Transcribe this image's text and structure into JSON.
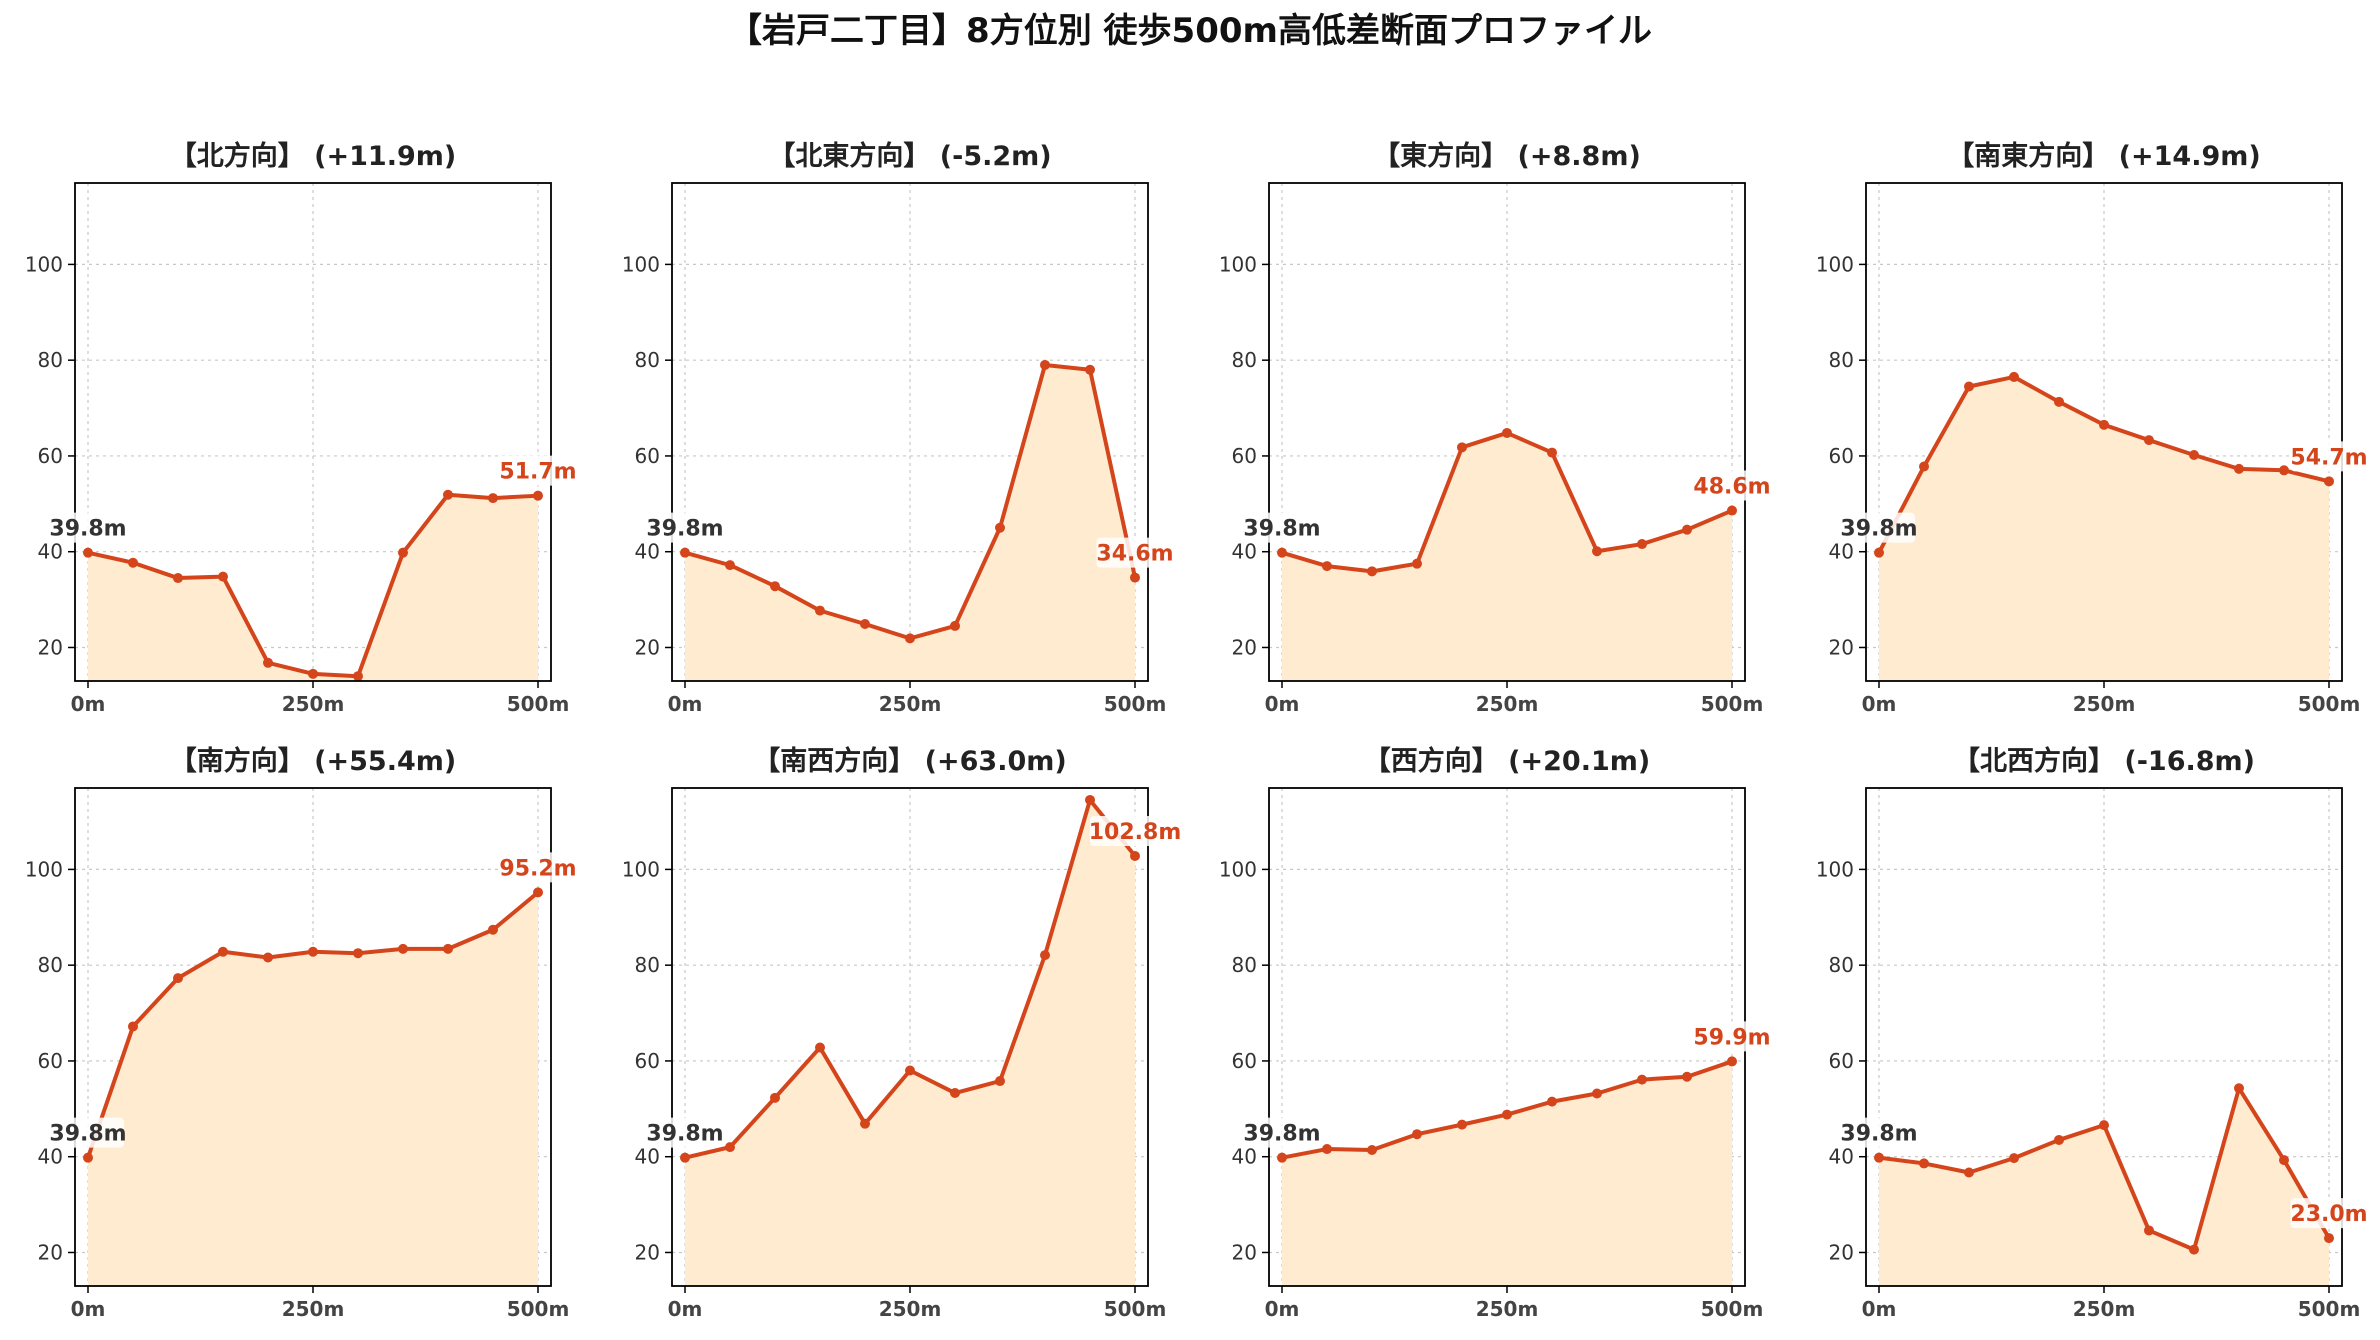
{
  "title": "【岩戸二丁目】8方位別 徒歩500m高低差断面プロファイル",
  "colors": {
    "line": "#d4451b",
    "fill": "#feebd0",
    "grid": "#c8c8c8",
    "start_label": "#333333",
    "end_label": "#d4451b"
  },
  "chart_data": [
    {
      "type": "area",
      "title": "【北方向】 (+11.9m)",
      "xlabel": "",
      "ylabel": "",
      "x": [
        0,
        50,
        100,
        150,
        200,
        250,
        300,
        350,
        400,
        450,
        500
      ],
      "xticks": [
        0,
        250,
        500
      ],
      "xtick_labels": [
        "0m",
        "250m",
        "500m"
      ],
      "ylim": [
        13,
        117
      ],
      "yticks": [
        20,
        40,
        60,
        80,
        100
      ],
      "grid": true,
      "series": [
        {
          "values": [
            39.8,
            37.7,
            34.5,
            34.8,
            16.8,
            14.5,
            14.0,
            39.8,
            51.9,
            51.2,
            51.7
          ]
        }
      ],
      "start_label": "39.8m",
      "end_label": "51.7m"
    },
    {
      "type": "area",
      "title": "【北東方向】 (-5.2m)",
      "xlabel": "",
      "ylabel": "",
      "x": [
        0,
        50,
        100,
        150,
        200,
        250,
        300,
        350,
        400,
        450,
        500
      ],
      "xticks": [
        0,
        250,
        500
      ],
      "xtick_labels": [
        "0m",
        "250m",
        "500m"
      ],
      "ylim": [
        13,
        117
      ],
      "yticks": [
        20,
        40,
        60,
        80,
        100
      ],
      "grid": true,
      "series": [
        {
          "values": [
            39.8,
            37.2,
            32.8,
            27.7,
            24.9,
            21.9,
            24.5,
            45.0,
            79.0,
            78.0,
            34.6
          ]
        }
      ],
      "start_label": "39.8m",
      "end_label": "34.6m"
    },
    {
      "type": "area",
      "title": "【東方向】 (+8.8m)",
      "xlabel": "",
      "ylabel": "",
      "x": [
        0,
        50,
        100,
        150,
        200,
        250,
        300,
        350,
        400,
        450,
        500
      ],
      "xticks": [
        0,
        250,
        500
      ],
      "xtick_labels": [
        "0m",
        "250m",
        "500m"
      ],
      "ylim": [
        13,
        117
      ],
      "yticks": [
        20,
        40,
        60,
        80,
        100
      ],
      "grid": true,
      "series": [
        {
          "values": [
            39.8,
            37.0,
            35.9,
            37.5,
            61.8,
            64.8,
            60.7,
            40.1,
            41.6,
            44.6,
            48.6
          ]
        }
      ],
      "start_label": "39.8m",
      "end_label": "48.6m"
    },
    {
      "type": "area",
      "title": "【南東方向】 (+14.9m)",
      "xlabel": "",
      "ylabel": "",
      "x": [
        0,
        50,
        100,
        150,
        200,
        250,
        300,
        350,
        400,
        450,
        500
      ],
      "xticks": [
        0,
        250,
        500
      ],
      "xtick_labels": [
        "0m",
        "250m",
        "500m"
      ],
      "ylim": [
        13,
        117
      ],
      "yticks": [
        20,
        40,
        60,
        80,
        100
      ],
      "grid": true,
      "series": [
        {
          "values": [
            39.8,
            57.8,
            74.5,
            76.5,
            71.3,
            66.5,
            63.3,
            60.2,
            57.3,
            57.0,
            54.7
          ]
        }
      ],
      "start_label": "39.8m",
      "end_label": "54.7m"
    },
    {
      "type": "area",
      "title": "【南方向】 (+55.4m)",
      "xlabel": "",
      "ylabel": "",
      "x": [
        0,
        50,
        100,
        150,
        200,
        250,
        300,
        350,
        400,
        450,
        500
      ],
      "xticks": [
        0,
        250,
        500
      ],
      "xtick_labels": [
        "0m",
        "250m",
        "500m"
      ],
      "ylim": [
        13,
        117
      ],
      "yticks": [
        20,
        40,
        60,
        80,
        100
      ],
      "grid": true,
      "series": [
        {
          "values": [
            39.8,
            67.2,
            77.3,
            82.8,
            81.6,
            82.8,
            82.5,
            83.4,
            83.4,
            87.4,
            95.2
          ]
        }
      ],
      "start_label": "39.8m",
      "end_label": "95.2m"
    },
    {
      "type": "area",
      "title": "【南西方向】 (+63.0m)",
      "xlabel": "",
      "ylabel": "",
      "x": [
        0,
        50,
        100,
        150,
        200,
        250,
        300,
        350,
        400,
        450,
        500
      ],
      "xticks": [
        0,
        250,
        500
      ],
      "xtick_labels": [
        "0m",
        "250m",
        "500m"
      ],
      "ylim": [
        13,
        117
      ],
      "yticks": [
        20,
        40,
        60,
        80,
        100
      ],
      "grid": true,
      "series": [
        {
          "values": [
            39.8,
            42.0,
            52.3,
            62.8,
            46.9,
            58.0,
            53.3,
            55.8,
            82.1,
            114.5,
            102.8
          ]
        }
      ],
      "start_label": "39.8m",
      "end_label": "102.8m"
    },
    {
      "type": "area",
      "title": "【西方向】 (+20.1m)",
      "xlabel": "",
      "ylabel": "",
      "x": [
        0,
        50,
        100,
        150,
        200,
        250,
        300,
        350,
        400,
        450,
        500
      ],
      "xticks": [
        0,
        250,
        500
      ],
      "xtick_labels": [
        "0m",
        "250m",
        "500m"
      ],
      "ylim": [
        13,
        117
      ],
      "yticks": [
        20,
        40,
        60,
        80,
        100
      ],
      "grid": true,
      "series": [
        {
          "values": [
            39.8,
            41.6,
            41.4,
            44.7,
            46.7,
            48.8,
            51.5,
            53.2,
            56.1,
            56.7,
            59.9
          ]
        }
      ],
      "start_label": "39.8m",
      "end_label": "59.9m"
    },
    {
      "type": "area",
      "title": "【北西方向】 (-16.8m)",
      "xlabel": "",
      "ylabel": "",
      "x": [
        0,
        50,
        100,
        150,
        200,
        250,
        300,
        350,
        400,
        450,
        500
      ],
      "xticks": [
        0,
        250,
        500
      ],
      "xtick_labels": [
        "0m",
        "250m",
        "500m"
      ],
      "ylim": [
        13,
        117
      ],
      "yticks": [
        20,
        40,
        60,
        80,
        100
      ],
      "grid": true,
      "series": [
        {
          "values": [
            39.8,
            38.6,
            36.7,
            39.7,
            43.5,
            46.6,
            24.6,
            20.6,
            54.3,
            39.3,
            23.0
          ]
        }
      ],
      "start_label": "39.8m",
      "end_label": "23.0m"
    }
  ]
}
